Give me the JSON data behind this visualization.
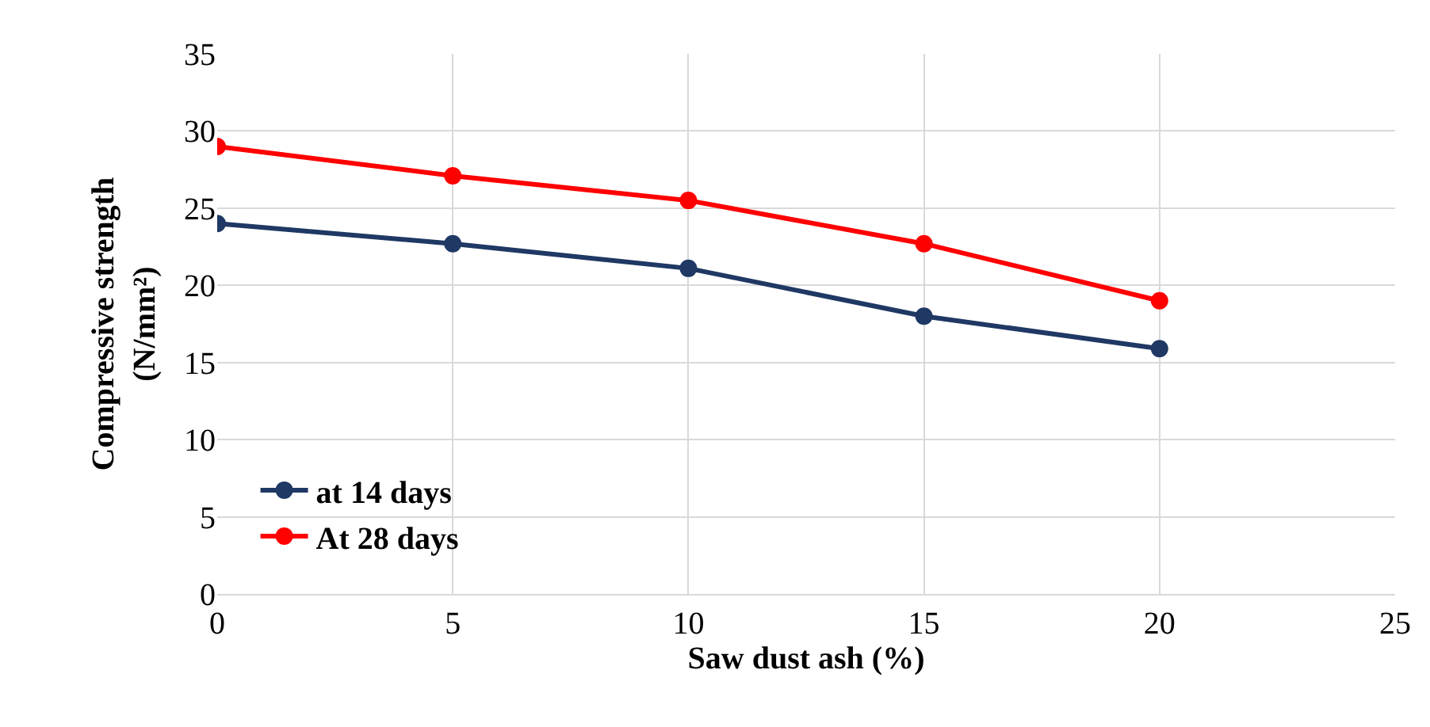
{
  "chart_data": {
    "type": "line",
    "xlabel": "Saw dust ash (%)",
    "ylabel": "Compressive strength\n(N/mm²)",
    "x": [
      0,
      5,
      10,
      15,
      20
    ],
    "series": [
      {
        "name": "at 14 days",
        "color": "#1f3864",
        "values": [
          24,
          22.7,
          21.1,
          18,
          15.9
        ]
      },
      {
        "name": "At 28 days",
        "color": "#ff0000",
        "values": [
          29,
          27.1,
          25.5,
          22.7,
          19
        ]
      }
    ],
    "xlim": [
      0,
      25
    ],
    "xticks": [
      0,
      5,
      10,
      15,
      20,
      25
    ],
    "ylim": [
      0,
      35
    ],
    "yticks": [
      0,
      5,
      10,
      15,
      20,
      25,
      30,
      35
    ],
    "grid": true,
    "legend": "bottom left",
    "marker": "circle",
    "line_style": "solid"
  }
}
